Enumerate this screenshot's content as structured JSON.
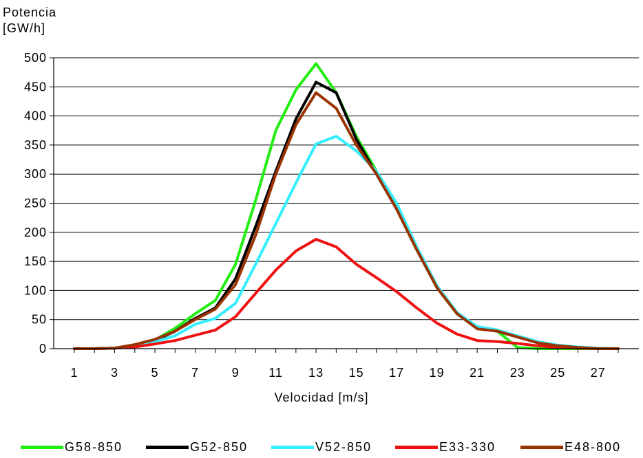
{
  "chart_data": {
    "type": "line",
    "ylabel_line1": "Potencia",
    "ylabel_line2": "[GW/h]",
    "xlabel": "Velocidad [m/s]",
    "x": [
      1,
      2,
      3,
      4,
      5,
      6,
      7,
      8,
      9,
      10,
      11,
      12,
      13,
      14,
      15,
      16,
      17,
      18,
      19,
      20,
      21,
      22,
      23,
      24,
      25,
      26,
      27,
      28
    ],
    "xlim": [
      1,
      28
    ],
    "x_ticks": [
      "1",
      "3",
      "5",
      "7",
      "9",
      "11",
      "13",
      "15",
      "17",
      "19",
      "21",
      "23",
      "25",
      "27"
    ],
    "x_tick_values": [
      1,
      3,
      5,
      7,
      9,
      11,
      13,
      15,
      17,
      19,
      21,
      23,
      25,
      27
    ],
    "ylim": [
      0,
      500
    ],
    "y_ticks": [
      "0",
      "50",
      "100",
      "150",
      "200",
      "250",
      "300",
      "350",
      "400",
      "450",
      "500"
    ],
    "y_tick_values": [
      0,
      50,
      100,
      150,
      200,
      250,
      300,
      350,
      400,
      450,
      500
    ],
    "grid": "horizontal",
    "legend_position": "bottom",
    "series": [
      {
        "name": "G58-850",
        "color": "#22ee11",
        "values": [
          0,
          0,
          1,
          6,
          15,
          35,
          60,
          83,
          145,
          255,
          375,
          445,
          490,
          440,
          365,
          305,
          245,
          170,
          105,
          60,
          35,
          30,
          2,
          0,
          0,
          0,
          0,
          0
        ]
      },
      {
        "name": "G52-850",
        "color": "#000000",
        "values": [
          0,
          0,
          1,
          6,
          14,
          30,
          52,
          70,
          120,
          210,
          305,
          395,
          458,
          440,
          360,
          300,
          240,
          170,
          105,
          60,
          35,
          30,
          20,
          10,
          5,
          2,
          0,
          0
        ]
      },
      {
        "name": "V52-850",
        "color": "#33eeff",
        "values": [
          0,
          0,
          1,
          4,
          12,
          22,
          42,
          52,
          78,
          145,
          215,
          285,
          352,
          365,
          340,
          305,
          250,
          175,
          108,
          62,
          38,
          32,
          22,
          12,
          6,
          3,
          1,
          0
        ]
      },
      {
        "name": "E33-330",
        "color": "#ee1111",
        "values": [
          0,
          0,
          1,
          3,
          8,
          14,
          23,
          32,
          55,
          95,
          135,
          168,
          188,
          175,
          145,
          122,
          98,
          70,
          44,
          25,
          14,
          12,
          9,
          5,
          2,
          1,
          0,
          0
        ]
      },
      {
        "name": "E48-800",
        "color": "#993300",
        "values": [
          0,
          0,
          1,
          7,
          16,
          30,
          50,
          68,
          110,
          195,
          300,
          385,
          440,
          413,
          350,
          300,
          240,
          170,
          105,
          60,
          34,
          30,
          20,
          10,
          5,
          2,
          0,
          0
        ]
      }
    ]
  }
}
